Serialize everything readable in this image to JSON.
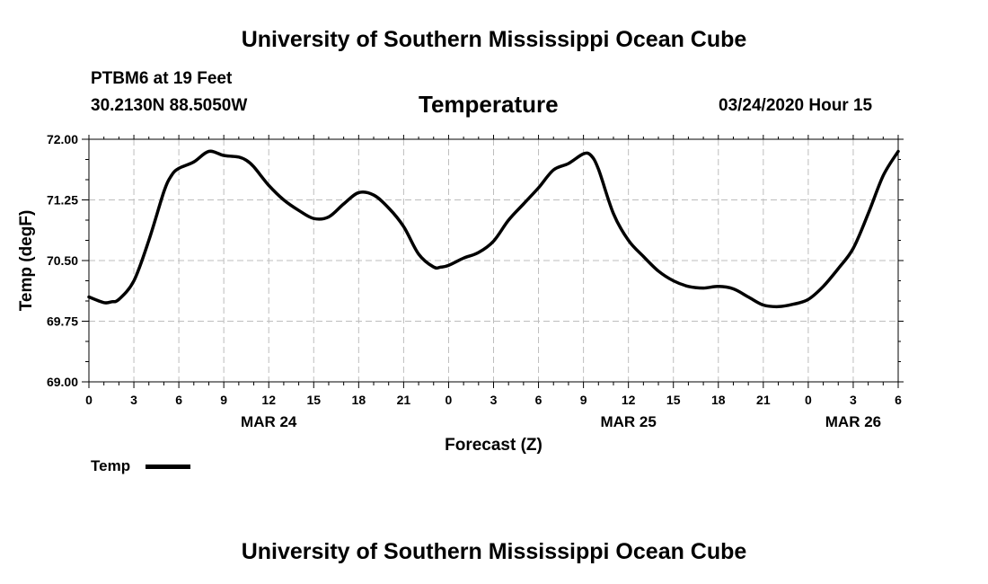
{
  "page": {
    "top_title": "University of Southern Mississippi Ocean Cube",
    "bottom_title": "University of Southern Mississippi Ocean Cube",
    "station": "PTBM6 at 19 Feet",
    "location": "30.2130N 88.5050W",
    "timestamp": "03/24/2020 Hour 15"
  },
  "chart_data": {
    "type": "line",
    "title": "Temperature",
    "xlabel": "Forecast (Z)",
    "ylabel": "Temp (degF)",
    "x_unit": "hours from 00Z MAR 24",
    "xlim": [
      0,
      54
    ],
    "ylim": [
      69.0,
      72.0
    ],
    "yticks": [
      "72.00",
      "71.25",
      "70.50",
      "69.75",
      "69.00"
    ],
    "ytick_values": [
      72.0,
      71.25,
      70.5,
      69.75,
      69.0
    ],
    "xticks": [
      "0",
      "3",
      "6",
      "9",
      "12",
      "15",
      "18",
      "21",
      "0",
      "3",
      "6",
      "9",
      "12",
      "15",
      "18",
      "21",
      "0",
      "3",
      "6"
    ],
    "date_labels": [
      {
        "label": "MAR 24",
        "hour": 12
      },
      {
        "label": "MAR 25",
        "hour": 36
      },
      {
        "label": "MAR 26",
        "hour": 51
      }
    ],
    "grid": true,
    "legend": "bottom-left",
    "series": [
      {
        "name": "Temp",
        "color": "#000000",
        "x": [
          0,
          1,
          1.5,
          2,
          3,
          4,
          5,
          5.5,
          6,
          7,
          8,
          9,
          10,
          10.5,
          11,
          12,
          13,
          14,
          15,
          16,
          17,
          18,
          19,
          20,
          21,
          22,
          23,
          23.5,
          24,
          25,
          26,
          27,
          28,
          29,
          30,
          31,
          32,
          33,
          33.5,
          34,
          35,
          36,
          37,
          38,
          39,
          40,
          41,
          42,
          43,
          44,
          45,
          46,
          47,
          48,
          49,
          50,
          51,
          52,
          53,
          54
        ],
        "values": [
          70.05,
          69.98,
          69.99,
          70.02,
          70.25,
          70.75,
          71.35,
          71.55,
          71.64,
          71.72,
          71.85,
          71.8,
          71.78,
          71.74,
          71.66,
          71.43,
          71.25,
          71.12,
          71.02,
          71.04,
          71.2,
          71.34,
          71.31,
          71.15,
          70.92,
          70.58,
          70.42,
          70.42,
          70.44,
          70.53,
          70.6,
          70.74,
          71.0,
          71.2,
          71.4,
          71.62,
          71.7,
          71.82,
          71.8,
          71.63,
          71.08,
          70.75,
          70.55,
          70.37,
          70.25,
          70.18,
          70.16,
          70.18,
          70.15,
          70.05,
          69.95,
          69.93,
          69.96,
          70.02,
          70.18,
          70.4,
          70.65,
          71.08,
          71.55,
          71.85
        ]
      }
    ]
  }
}
